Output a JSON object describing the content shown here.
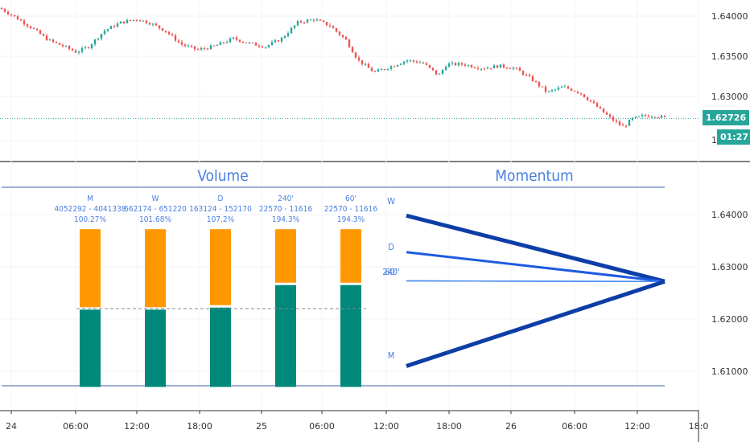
{
  "colors": {
    "bull": "#26a69a",
    "bear": "#ef5350",
    "orange": "#ff9800",
    "teal": "#00897b",
    "blue_text": "#4a7fe0",
    "dark_blue": "#0d3ea6",
    "mid_blue": "#1e5be0",
    "light_blue": "#4a8df0",
    "price_badge": "#26a69a",
    "dotted_price": "#26a69a"
  },
  "price_axis_top": [
    "1.64000",
    "1.63500",
    "1.63000",
    "1.62726"
  ],
  "price_axis_bottom": [
    "1.64000",
    "1.63000",
    "1.62000",
    "1.61000"
  ],
  "partial_tick": "1",
  "current_price_badge": "1.62726",
  "countdown_badge": "01:27",
  "time_axis": [
    "24",
    "06:00",
    "12:00",
    "18:00",
    "25",
    "06:00",
    "12:00",
    "18:00",
    "26",
    "06:00",
    "12:00",
    "18:0"
  ],
  "panel_titles": {
    "volume": "Volume",
    "momentum": "Momentum"
  },
  "chart_data": [
    {
      "type": "candlestick",
      "x_axis": "time",
      "y_range": [
        1.626,
        1.6415
      ],
      "series": [
        {
          "close_start": 1.641,
          "close_end": 1.627,
          "last": 1.62726
        }
      ]
    },
    {
      "type": "bar",
      "title": "Volume",
      "categories": [
        "M",
        "W",
        "D",
        "240'",
        "60'"
      ],
      "labels": [
        {
          "tf": "M",
          "range": "4052292 - 4041338",
          "pct": "100.27%"
        },
        {
          "tf": "W",
          "range": "662174 - 651220",
          "pct": "101.68%"
        },
        {
          "tf": "D",
          "range": "163124 - 152170",
          "pct": "107.2%"
        },
        {
          "tf": "240'",
          "range": "22570 - 11616",
          "pct": "194.3%"
        },
        {
          "tf": "60'",
          "range": "22570 - 11616",
          "pct": "194.3%"
        }
      ],
      "series": [
        {
          "color": "teal",
          "values": [
            1.6218,
            1.6218,
            1.6222,
            1.6265,
            1.6265
          ]
        },
        {
          "color": "orange",
          "values": [
            1.6372,
            1.6372,
            1.6372,
            1.6372,
            1.6372
          ]
        }
      ],
      "baseline": 1.607,
      "reference_line": 1.622
    },
    {
      "type": "line",
      "title": "Momentum",
      "series": [
        {
          "name": "W",
          "start": 1.6398,
          "end": 1.6272
        },
        {
          "name": "D",
          "start": 1.6328,
          "end": 1.6272
        },
        {
          "name": "240'",
          "start": 1.6273,
          "end": 1.6272
        },
        {
          "name": "60'",
          "start": 1.6273,
          "end": 1.6272
        },
        {
          "name": "M",
          "start": 1.611,
          "end": 1.6272
        }
      ]
    }
  ]
}
